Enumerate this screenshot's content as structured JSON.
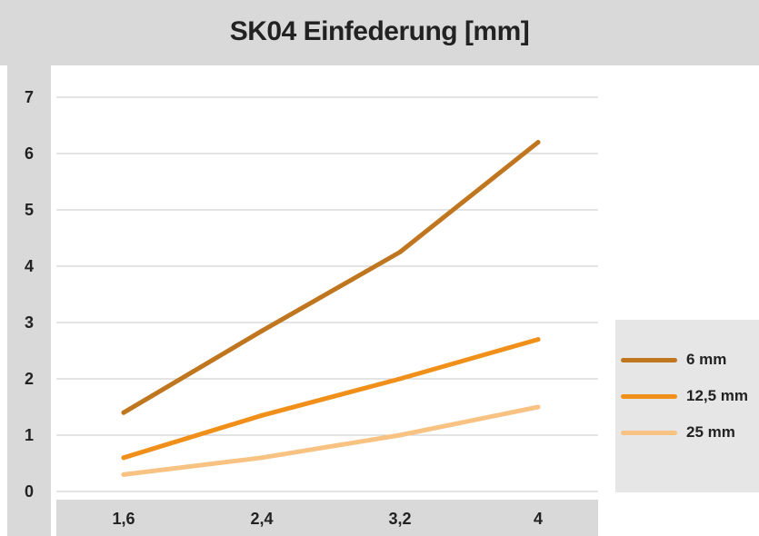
{
  "chart_data": {
    "type": "line",
    "title": "SK04 Einfederung [mm]",
    "categories": [
      "1,6",
      "2,4",
      "3,2",
      "4"
    ],
    "ylim": [
      0,
      7
    ],
    "yticks": [
      "0",
      "1",
      "2",
      "3",
      "4",
      "5",
      "6",
      "7"
    ],
    "grid": true,
    "legend_position": "right",
    "series": [
      {
        "name": "6 mm",
        "color": "#c0761f",
        "values": [
          1.4,
          2.85,
          4.25,
          6.2
        ]
      },
      {
        "name": "12,5 mm",
        "color": "#f0901a",
        "values": [
          0.6,
          1.35,
          2.0,
          2.7
        ]
      },
      {
        "name": "25 mm",
        "color": "#f8c282",
        "values": [
          0.3,
          0.6,
          1.0,
          1.5
        ]
      }
    ]
  }
}
